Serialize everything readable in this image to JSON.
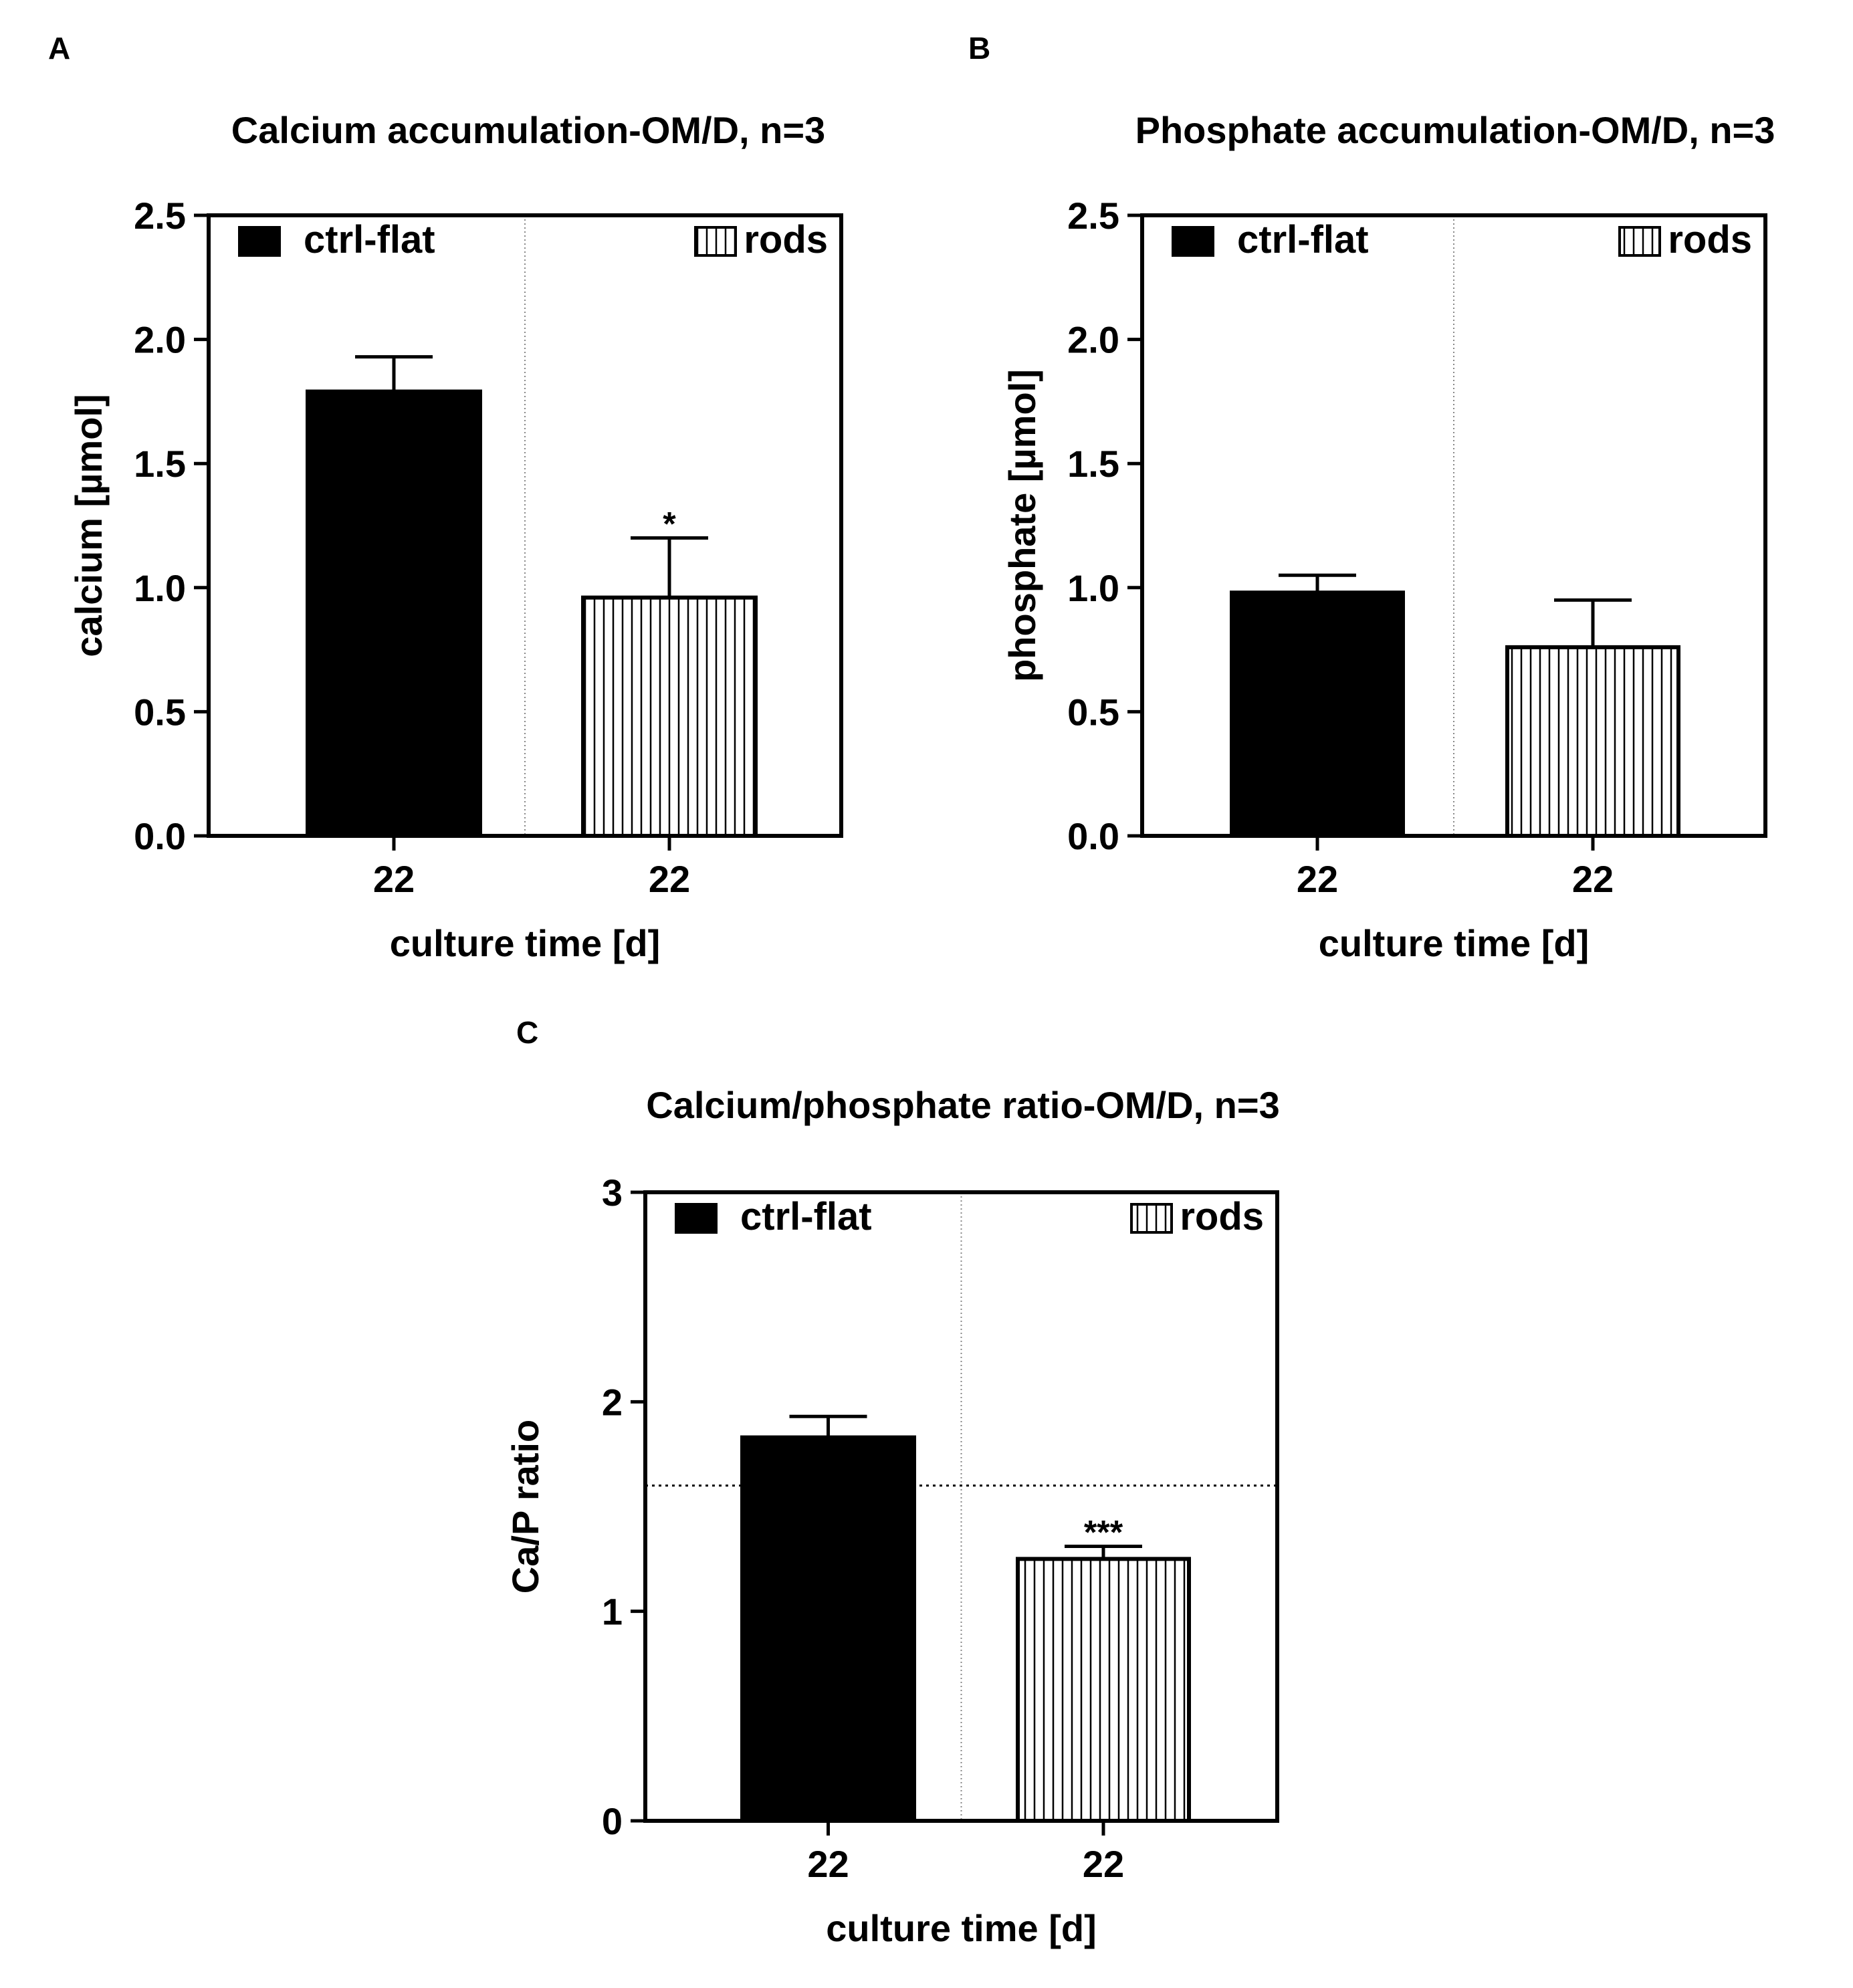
{
  "chart_data": [
    {
      "panel": "A",
      "type": "bar",
      "title": "Calcium accumulation-OM/D, n=3",
      "xlabel": "culture time [d]",
      "ylabel": "calcium [µmol]",
      "ylim": [
        0,
        2.5
      ],
      "yticks": [
        "0.0",
        "0.5",
        "1.0",
        "1.5",
        "2.0",
        "2.5"
      ],
      "categories": [
        "22",
        "22"
      ],
      "series": [
        {
          "name": "ctrl-flat",
          "value": 1.79,
          "error": 0.14,
          "sig": ""
        },
        {
          "name": "rods",
          "value": 0.96,
          "error": 0.24,
          "sig": "*"
        }
      ],
      "legend": "top",
      "grid": false
    },
    {
      "panel": "B",
      "type": "bar",
      "title": "Phosphate accumulation-OM/D, n=3",
      "xlabel": "culture time [d]",
      "ylabel": "phosphate [µmol]",
      "ylim": [
        0,
        2.5
      ],
      "yticks": [
        "0.0",
        "0.5",
        "1.0",
        "1.5",
        "2.0",
        "2.5"
      ],
      "categories": [
        "22",
        "22"
      ],
      "series": [
        {
          "name": "ctrl-flat",
          "value": 0.98,
          "error": 0.07,
          "sig": ""
        },
        {
          "name": "rods",
          "value": 0.76,
          "error": 0.19,
          "sig": ""
        }
      ],
      "legend": "top",
      "grid": false
    },
    {
      "panel": "C",
      "type": "bar",
      "title": "Calcium/phosphate ratio-OM/D, n=3",
      "xlabel": "culture time [d]",
      "ylabel": "Ca/P ratio",
      "ylim": [
        0,
        3
      ],
      "yticks": [
        "0",
        "1",
        "2",
        "3"
      ],
      "categories": [
        "22",
        "22"
      ],
      "reference_line": 1.6,
      "series": [
        {
          "name": "ctrl-flat",
          "value": 1.83,
          "error": 0.1,
          "sig": ""
        },
        {
          "name": "rods",
          "value": 1.25,
          "error": 0.06,
          "sig": "***"
        }
      ],
      "legend": "top",
      "grid": false
    }
  ]
}
